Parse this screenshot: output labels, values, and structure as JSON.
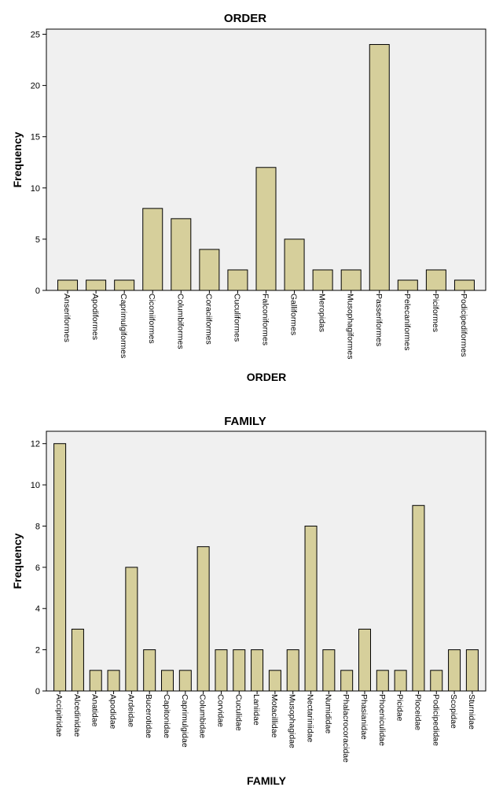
{
  "colors": {
    "plot_background": "#f0f0f0",
    "bar_fill": "#d6cf9b",
    "bar_stroke": "#000000"
  },
  "chart_data": [
    {
      "type": "bar",
      "title": "ORDER",
      "xlabel": "ORDER",
      "ylabel": "Frequency",
      "ylim": [
        0,
        25.5
      ],
      "yticks": [
        0,
        5,
        10,
        15,
        20,
        25
      ],
      "grid": false,
      "categories": [
        "Anseriformes",
        "Apodiformes",
        "Caprimulgiformes",
        "Ciconiiformes",
        "Columbiformes",
        "Coraciiformes",
        "Cuculiformes",
        "Falconiformes",
        "Galliformes",
        "Meropidas",
        "Musophagiformes",
        "Passeriformes",
        "Pelecaniformes",
        "Piciformes",
        "Podicipediformes"
      ],
      "values": [
        1,
        1,
        1,
        8,
        7,
        4,
        2,
        12,
        5,
        2,
        2,
        24,
        1,
        2,
        1
      ]
    },
    {
      "type": "bar",
      "title": "FAMILY",
      "xlabel": "FAMILY",
      "ylabel": "Frequency",
      "ylim": [
        0,
        12.6
      ],
      "yticks": [
        0,
        2,
        4,
        6,
        8,
        10,
        12
      ],
      "grid": false,
      "categories": [
        "Accipitridae",
        "Alcedinidae",
        "Anatidae",
        "Apodidae",
        "Ardeidae",
        "Bucerotidae",
        "Capitonidae",
        "Caprimulgidae",
        "Columbidae",
        "Corvidae",
        "Cuculidae",
        "Laniidae",
        "Motacillidae",
        "Musophagidae",
        "Nectariniidae",
        "Numididae",
        "Phalacrocoracidae",
        "Phasianidae",
        "Phoeniculidae",
        "Picidae",
        "Ploceidae",
        "Podicipedidae",
        "Scopidae",
        "Sturnidae"
      ],
      "values": [
        12,
        3,
        1,
        1,
        6,
        2,
        1,
        1,
        7,
        2,
        2,
        2,
        1,
        2,
        8,
        2,
        1,
        3,
        1,
        1,
        9,
        1,
        2,
        2
      ]
    }
  ]
}
